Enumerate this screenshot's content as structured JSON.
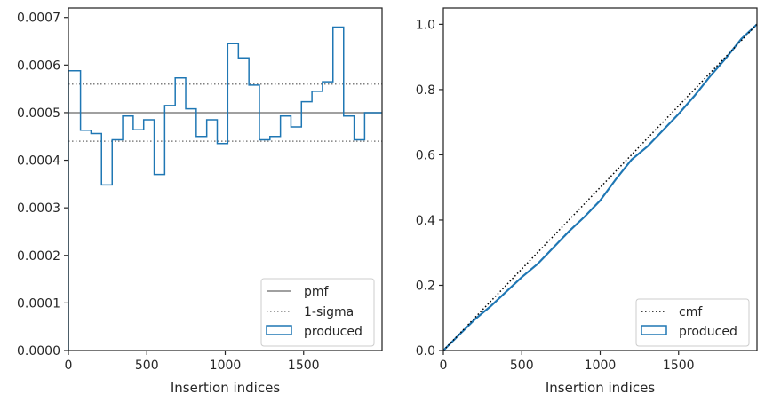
{
  "chart_data": [
    {
      "type": "step",
      "xlabel": "Insertion indices",
      "ylabel": "",
      "xlim": [
        0,
        2000
      ],
      "ylim": [
        0,
        0.00072
      ],
      "xticks": [
        0,
        500,
        1000,
        1500
      ],
      "yticks": [
        0,
        0.0001,
        0.0002,
        0.0003,
        0.0004,
        0.0005,
        0.0006,
        0.0007
      ],
      "ytick_labels": [
        "0.0000",
        "0.0001",
        "0.0002",
        "0.0003",
        "0.0004",
        "0.0005",
        "0.0006",
        "0.0007"
      ],
      "grid": false,
      "legend_position": "lower-right",
      "pmf": {
        "name": "pmf",
        "value": 0.0005,
        "color": "#808080"
      },
      "sigma": {
        "name": "1-sigma",
        "values": [
          0.00044,
          0.00056
        ],
        "color": "#808080"
      },
      "produced": {
        "name": "produced",
        "color": "#1f77b4",
        "bin_edges": [
          0,
          77,
          144,
          211,
          279,
          346,
          413,
          480,
          547,
          614,
          681,
          748,
          815,
          882,
          949,
          1016,
          1084,
          1151,
          1218,
          1285,
          1352,
          1419,
          1486,
          1553,
          1620,
          1687,
          1755,
          1822,
          1889,
          1956,
          2000
        ],
        "values": [
          0.000588,
          0.000463,
          0.000456,
          0.000348,
          0.000443,
          0.000493,
          0.000464,
          0.000485,
          0.00037,
          0.000515,
          0.000573,
          0.000508,
          0.00045,
          0.000485,
          0.000435,
          0.000645,
          0.000615,
          0.000558,
          0.000443,
          0.00045,
          0.000493,
          0.00047,
          0.000523,
          0.000545,
          0.000565,
          0.00068,
          0.000493,
          0.000443,
          0.0005,
          0.0005
        ]
      }
    },
    {
      "type": "line",
      "xlabel": "Insertion indices",
      "ylabel": "",
      "xlim": [
        0,
        2000
      ],
      "ylim": [
        0,
        1.05
      ],
      "xticks": [
        0,
        500,
        1000,
        1500
      ],
      "yticks": [
        0,
        0.2,
        0.4,
        0.6,
        0.8,
        1.0
      ],
      "ytick_labels": [
        "0.0",
        "0.2",
        "0.4",
        "0.6",
        "0.8",
        "1.0"
      ],
      "grid": false,
      "legend_position": "lower-right",
      "cmf": {
        "name": "cmf",
        "x": [
          0,
          2000
        ],
        "y": [
          0,
          1.0
        ],
        "color": "#000000"
      },
      "produced": {
        "name": "produced",
        "color": "#1f77b4",
        "x": [
          0,
          100,
          200,
          300,
          400,
          500,
          600,
          700,
          800,
          900,
          1000,
          1100,
          1200,
          1300,
          1400,
          1500,
          1600,
          1700,
          1800,
          1900,
          2000
        ],
        "y": [
          0,
          0.048,
          0.095,
          0.135,
          0.18,
          0.225,
          0.265,
          0.315,
          0.365,
          0.41,
          0.46,
          0.525,
          0.585,
          0.625,
          0.675,
          0.725,
          0.78,
          0.84,
          0.895,
          0.955,
          1.0
        ]
      }
    }
  ]
}
